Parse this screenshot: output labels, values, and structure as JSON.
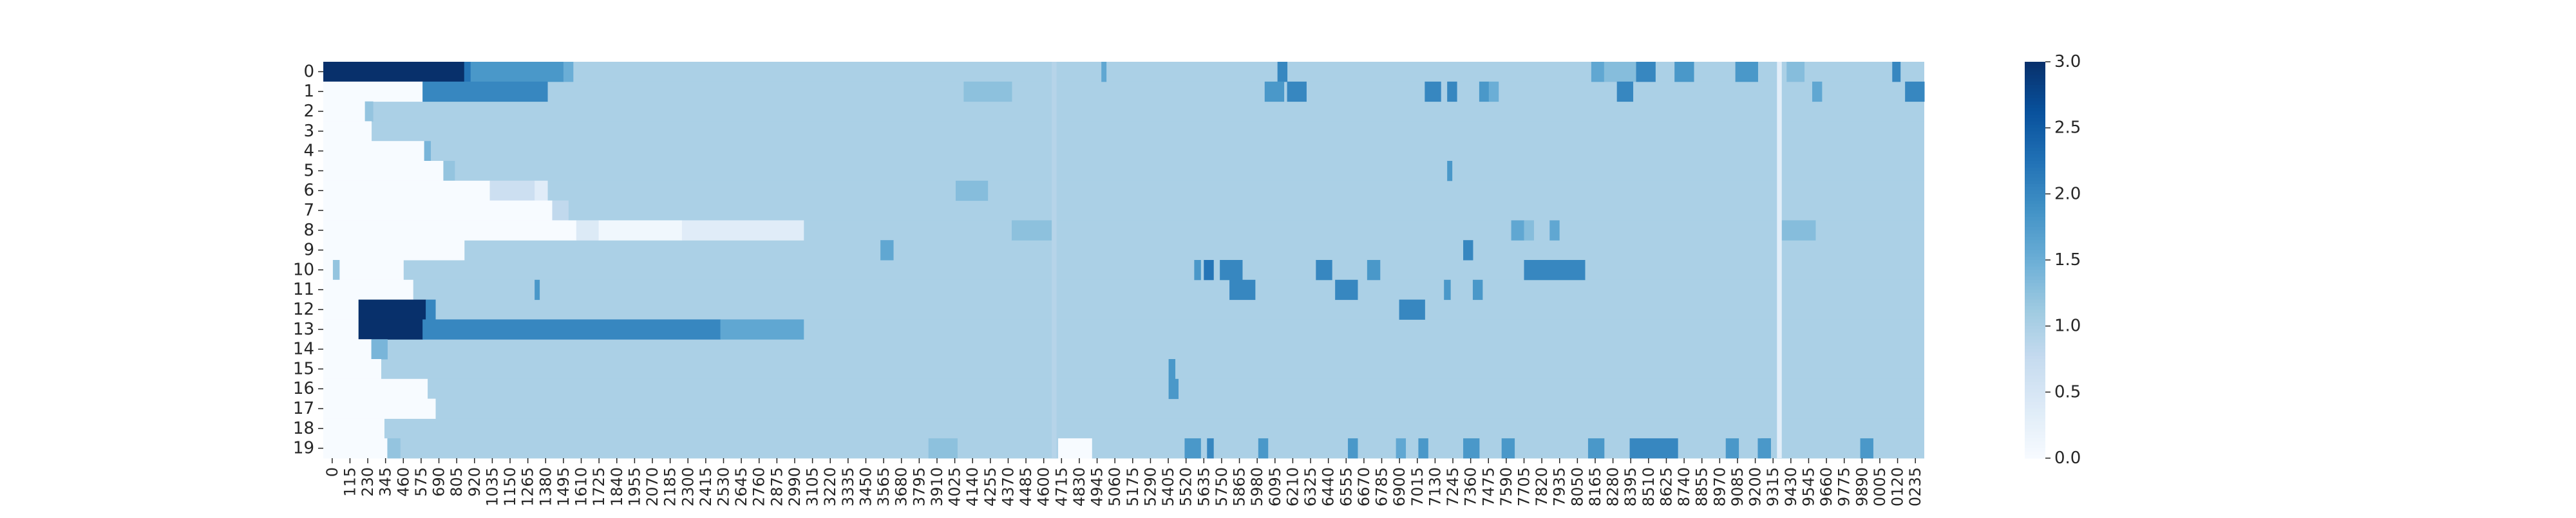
{
  "chart_data": {
    "type": "heatmap",
    "title": "",
    "xlabel": "",
    "ylabel": "",
    "rows": [
      "0",
      "1",
      "2",
      "3",
      "4",
      "5",
      "6",
      "7",
      "8",
      "9",
      "10",
      "11",
      "12",
      "13",
      "14",
      "15",
      "16",
      "17",
      "18",
      "19"
    ],
    "x_tick_labels": [
      "0",
      "115",
      "230",
      "345",
      "460",
      "575",
      "690",
      "805",
      "920",
      "1035",
      "1150",
      "1265",
      "1380",
      "1495",
      "1610",
      "1725",
      "1840",
      "1955",
      "2070",
      "2185",
      "2300",
      "2415",
      "2530",
      "2645",
      "2760",
      "2875",
      "2990",
      "3105",
      "3220",
      "3335",
      "3450",
      "3565",
      "3680",
      "3795",
      "3910",
      "4025",
      "4140",
      "4255",
      "4370",
      "4485",
      "4600",
      "4715",
      "4830",
      "4945",
      "5060",
      "5175",
      "5290",
      "5405",
      "5520",
      "5635",
      "5750",
      "5865",
      "5980",
      "6095",
      "6210",
      "6325",
      "6440",
      "6555",
      "6670",
      "6785",
      "6900",
      "7015",
      "7130",
      "7245",
      "7360",
      "7475",
      "7590",
      "7705",
      "7820",
      "7935",
      "8050",
      "8165",
      "8280",
      "8395",
      "8510",
      "8625",
      "8740",
      "8855",
      "8970",
      "9085",
      "9200",
      "9315",
      "9430",
      "9545",
      "9660",
      "9775",
      "9890",
      "0005",
      "0120",
      "0235"
    ],
    "value_range": [
      0,
      3
    ],
    "default_value": 1,
    "colormap": "Blues",
    "color_stops": [
      "#f7fbff",
      "#deebf7",
      "#c6dbef",
      "#9ecae1",
      "#6baed6",
      "#4292c6",
      "#2171b5",
      "#08519c",
      "#08306b"
    ],
    "colorbar": {
      "ticks": [
        "0.0",
        "0.5",
        "1.0",
        "1.5",
        "2.0",
        "2.5",
        "3.0"
      ],
      "values": [
        0,
        0.5,
        1,
        1.5,
        2,
        2.5,
        3
      ],
      "position": "right"
    },
    "segments": [
      {
        "row": 0,
        "start": 0,
        "end": 0.088,
        "value": 3
      },
      {
        "row": 0,
        "start": 0.088,
        "end": 0.092,
        "value": 2.2
      },
      {
        "row": 0,
        "start": 0.092,
        "end": 0.15,
        "value": 1.8
      },
      {
        "row": 0,
        "start": 0.15,
        "end": 0.156,
        "value": 1.5
      },
      {
        "row": 0,
        "start": 0.486,
        "end": 0.489,
        "value": 1.6
      },
      {
        "row": 0,
        "start": 0.596,
        "end": 0.6,
        "value": 2.0
      },
      {
        "row": 0,
        "start": 0.597,
        "end": 0.602,
        "value": 2.0
      },
      {
        "row": 0,
        "start": 0.792,
        "end": 0.8,
        "value": 1.6
      },
      {
        "row": 0,
        "start": 0.8,
        "end": 0.82,
        "value": 1.3
      },
      {
        "row": 0,
        "start": 0.82,
        "end": 0.832,
        "value": 2.0
      },
      {
        "row": 0,
        "start": 0.844,
        "end": 0.856,
        "value": 1.8
      },
      {
        "row": 0,
        "start": 0.882,
        "end": 0.896,
        "value": 1.8
      },
      {
        "row": 0,
        "start": 0.914,
        "end": 0.925,
        "value": 1.3
      },
      {
        "row": 0,
        "start": 0.98,
        "end": 0.985,
        "value": 2.0
      },
      {
        "row": 1,
        "start": 0,
        "end": 0.062,
        "value": 0
      },
      {
        "row": 1,
        "start": 0.062,
        "end": 0.14,
        "value": 2
      },
      {
        "row": 1,
        "start": 0.4,
        "end": 0.43,
        "value": 1.25
      },
      {
        "row": 1,
        "start": 0.588,
        "end": 0.6,
        "value": 1.8
      },
      {
        "row": 1,
        "start": 0.602,
        "end": 0.614,
        "value": 2.0
      },
      {
        "row": 1,
        "start": 0.688,
        "end": 0.698,
        "value": 2.0
      },
      {
        "row": 1,
        "start": 0.702,
        "end": 0.708,
        "value": 2.0
      },
      {
        "row": 1,
        "start": 0.722,
        "end": 0.728,
        "value": 1.8
      },
      {
        "row": 1,
        "start": 0.728,
        "end": 0.734,
        "value": 1.5
      },
      {
        "row": 1,
        "start": 0.808,
        "end": 0.818,
        "value": 2.0
      },
      {
        "row": 1,
        "start": 0.93,
        "end": 0.936,
        "value": 1.6
      },
      {
        "row": 1,
        "start": 0.988,
        "end": 1,
        "value": 2.0
      },
      {
        "row": 2,
        "start": 0,
        "end": 0.026,
        "value": 0
      },
      {
        "row": 2,
        "start": 0.026,
        "end": 0.031,
        "value": 1.2
      },
      {
        "row": 3,
        "start": 0,
        "end": 0.03,
        "value": 0
      },
      {
        "row": 4,
        "start": 0,
        "end": 0.063,
        "value": 0
      },
      {
        "row": 4,
        "start": 0.063,
        "end": 0.067,
        "value": 1.4
      },
      {
        "row": 5,
        "start": 0,
        "end": 0.075,
        "value": 0
      },
      {
        "row": 5,
        "start": 0.075,
        "end": 0.082,
        "value": 1.2
      },
      {
        "row": 5,
        "start": 0.702,
        "end": 0.705,
        "value": 1.8
      },
      {
        "row": 6,
        "start": 0,
        "end": 0.104,
        "value": 0
      },
      {
        "row": 6,
        "start": 0.104,
        "end": 0.132,
        "value": 0.65
      },
      {
        "row": 6,
        "start": 0.132,
        "end": 0.14,
        "value": 0.35
      },
      {
        "row": 6,
        "start": 0.395,
        "end": 0.415,
        "value": 1.3
      },
      {
        "row": 7,
        "start": 0,
        "end": 0.143,
        "value": 0
      },
      {
        "row": 7,
        "start": 0.143,
        "end": 0.153,
        "value": 0.8
      },
      {
        "row": 8,
        "start": 0,
        "end": 0.158,
        "value": 0
      },
      {
        "row": 8,
        "start": 0.158,
        "end": 0.172,
        "value": 0.4
      },
      {
        "row": 8,
        "start": 0.172,
        "end": 0.224,
        "value": 0.1
      },
      {
        "row": 8,
        "start": 0.224,
        "end": 0.3,
        "value": 0.35
      },
      {
        "row": 8,
        "start": 0.43,
        "end": 0.456,
        "value": 1.25
      },
      {
        "row": 8,
        "start": 0.742,
        "end": 0.75,
        "value": 1.6
      },
      {
        "row": 8,
        "start": 0.75,
        "end": 0.756,
        "value": 1.3
      },
      {
        "row": 8,
        "start": 0.766,
        "end": 0.772,
        "value": 1.6
      },
      {
        "row": 8,
        "start": 0.91,
        "end": 0.932,
        "value": 1.3
      },
      {
        "row": 9,
        "start": 0,
        "end": 0.088,
        "value": 0
      },
      {
        "row": 9,
        "start": 0.348,
        "end": 0.356,
        "value": 1.6
      },
      {
        "row": 9,
        "start": 0.712,
        "end": 0.718,
        "value": 2.0
      },
      {
        "row": 10,
        "start": 0,
        "end": 0.05,
        "value": 0
      },
      {
        "row": 10,
        "start": 0.006,
        "end": 0.01,
        "value": 1.2
      },
      {
        "row": 10,
        "start": 0.544,
        "end": 0.548,
        "value": 1.8
      },
      {
        "row": 10,
        "start": 0.55,
        "end": 0.556,
        "value": 2.2
      },
      {
        "row": 10,
        "start": 0.56,
        "end": 0.574,
        "value": 2.0
      },
      {
        "row": 10,
        "start": 0.62,
        "end": 0.63,
        "value": 2.0
      },
      {
        "row": 10,
        "start": 0.652,
        "end": 0.66,
        "value": 1.8
      },
      {
        "row": 10,
        "start": 0.75,
        "end": 0.788,
        "value": 2.0
      },
      {
        "row": 11,
        "start": 0,
        "end": 0.056,
        "value": 0
      },
      {
        "row": 11,
        "start": 0.132,
        "end": 0.135,
        "value": 1.8
      },
      {
        "row": 11,
        "start": 0.566,
        "end": 0.582,
        "value": 2.0
      },
      {
        "row": 11,
        "start": 0.632,
        "end": 0.646,
        "value": 2.0
      },
      {
        "row": 11,
        "start": 0.7,
        "end": 0.704,
        "value": 1.8
      },
      {
        "row": 11,
        "start": 0.718,
        "end": 0.724,
        "value": 1.8
      },
      {
        "row": 12,
        "start": 0,
        "end": 0.022,
        "value": 0
      },
      {
        "row": 12,
        "start": 0.022,
        "end": 0.064,
        "value": 3
      },
      {
        "row": 12,
        "start": 0.064,
        "end": 0.07,
        "value": 2.0
      },
      {
        "row": 12,
        "start": 0.672,
        "end": 0.688,
        "value": 2.0
      },
      {
        "row": 13,
        "start": 0,
        "end": 0.022,
        "value": 0
      },
      {
        "row": 13,
        "start": 0.022,
        "end": 0.062,
        "value": 3
      },
      {
        "row": 13,
        "start": 0.062,
        "end": 0.248,
        "value": 2
      },
      {
        "row": 13,
        "start": 0.248,
        "end": 0.3,
        "value": 1.6
      },
      {
        "row": 14,
        "start": 0,
        "end": 0.03,
        "value": 0
      },
      {
        "row": 14,
        "start": 0.03,
        "end": 0.04,
        "value": 1.4
      },
      {
        "row": 15,
        "start": 0,
        "end": 0.036,
        "value": 0
      },
      {
        "row": 15,
        "start": 0.528,
        "end": 0.532,
        "value": 1.8
      },
      {
        "row": 16,
        "start": 0,
        "end": 0.065,
        "value": 0
      },
      {
        "row": 16,
        "start": 0.528,
        "end": 0.534,
        "value": 1.8
      },
      {
        "row": 17,
        "start": 0,
        "end": 0.07,
        "value": 0
      },
      {
        "row": 18,
        "start": 0,
        "end": 0.038,
        "value": 0
      },
      {
        "row": 19,
        "start": 0,
        "end": 0.04,
        "value": 0
      },
      {
        "row": 19,
        "start": 0.04,
        "end": 0.048,
        "value": 1.2
      },
      {
        "row": 19,
        "start": 0.378,
        "end": 0.396,
        "value": 1.25
      },
      {
        "row": 19,
        "start": 0.459,
        "end": 0.48,
        "value": 0
      },
      {
        "row": 19,
        "start": 0.538,
        "end": 0.548,
        "value": 1.8
      },
      {
        "row": 19,
        "start": 0.552,
        "end": 0.556,
        "value": 2.0
      },
      {
        "row": 19,
        "start": 0.584,
        "end": 0.59,
        "value": 1.8
      },
      {
        "row": 19,
        "start": 0.64,
        "end": 0.646,
        "value": 1.8
      },
      {
        "row": 19,
        "start": 0.67,
        "end": 0.676,
        "value": 1.6
      },
      {
        "row": 19,
        "start": 0.684,
        "end": 0.69,
        "value": 1.8
      },
      {
        "row": 19,
        "start": 0.712,
        "end": 0.722,
        "value": 1.8
      },
      {
        "row": 19,
        "start": 0.736,
        "end": 0.744,
        "value": 1.8
      },
      {
        "row": 19,
        "start": 0.79,
        "end": 0.8,
        "value": 1.8
      },
      {
        "row": 19,
        "start": 0.816,
        "end": 0.846,
        "value": 2.0
      },
      {
        "row": 19,
        "start": 0.876,
        "end": 0.884,
        "value": 1.8
      },
      {
        "row": 19,
        "start": 0.896,
        "end": 0.904,
        "value": 1.8
      },
      {
        "row": 19,
        "start": 0.898,
        "end": 0.904,
        "value": 1.8
      },
      {
        "row": 19,
        "start": 0.96,
        "end": 0.968,
        "value": 1.8
      }
    ],
    "gaps": [
      {
        "start": 0.455,
        "end": 0.458,
        "value": 0.9
      },
      {
        "start": 0.908,
        "end": 0.911,
        "value": 0.3
      }
    ]
  }
}
